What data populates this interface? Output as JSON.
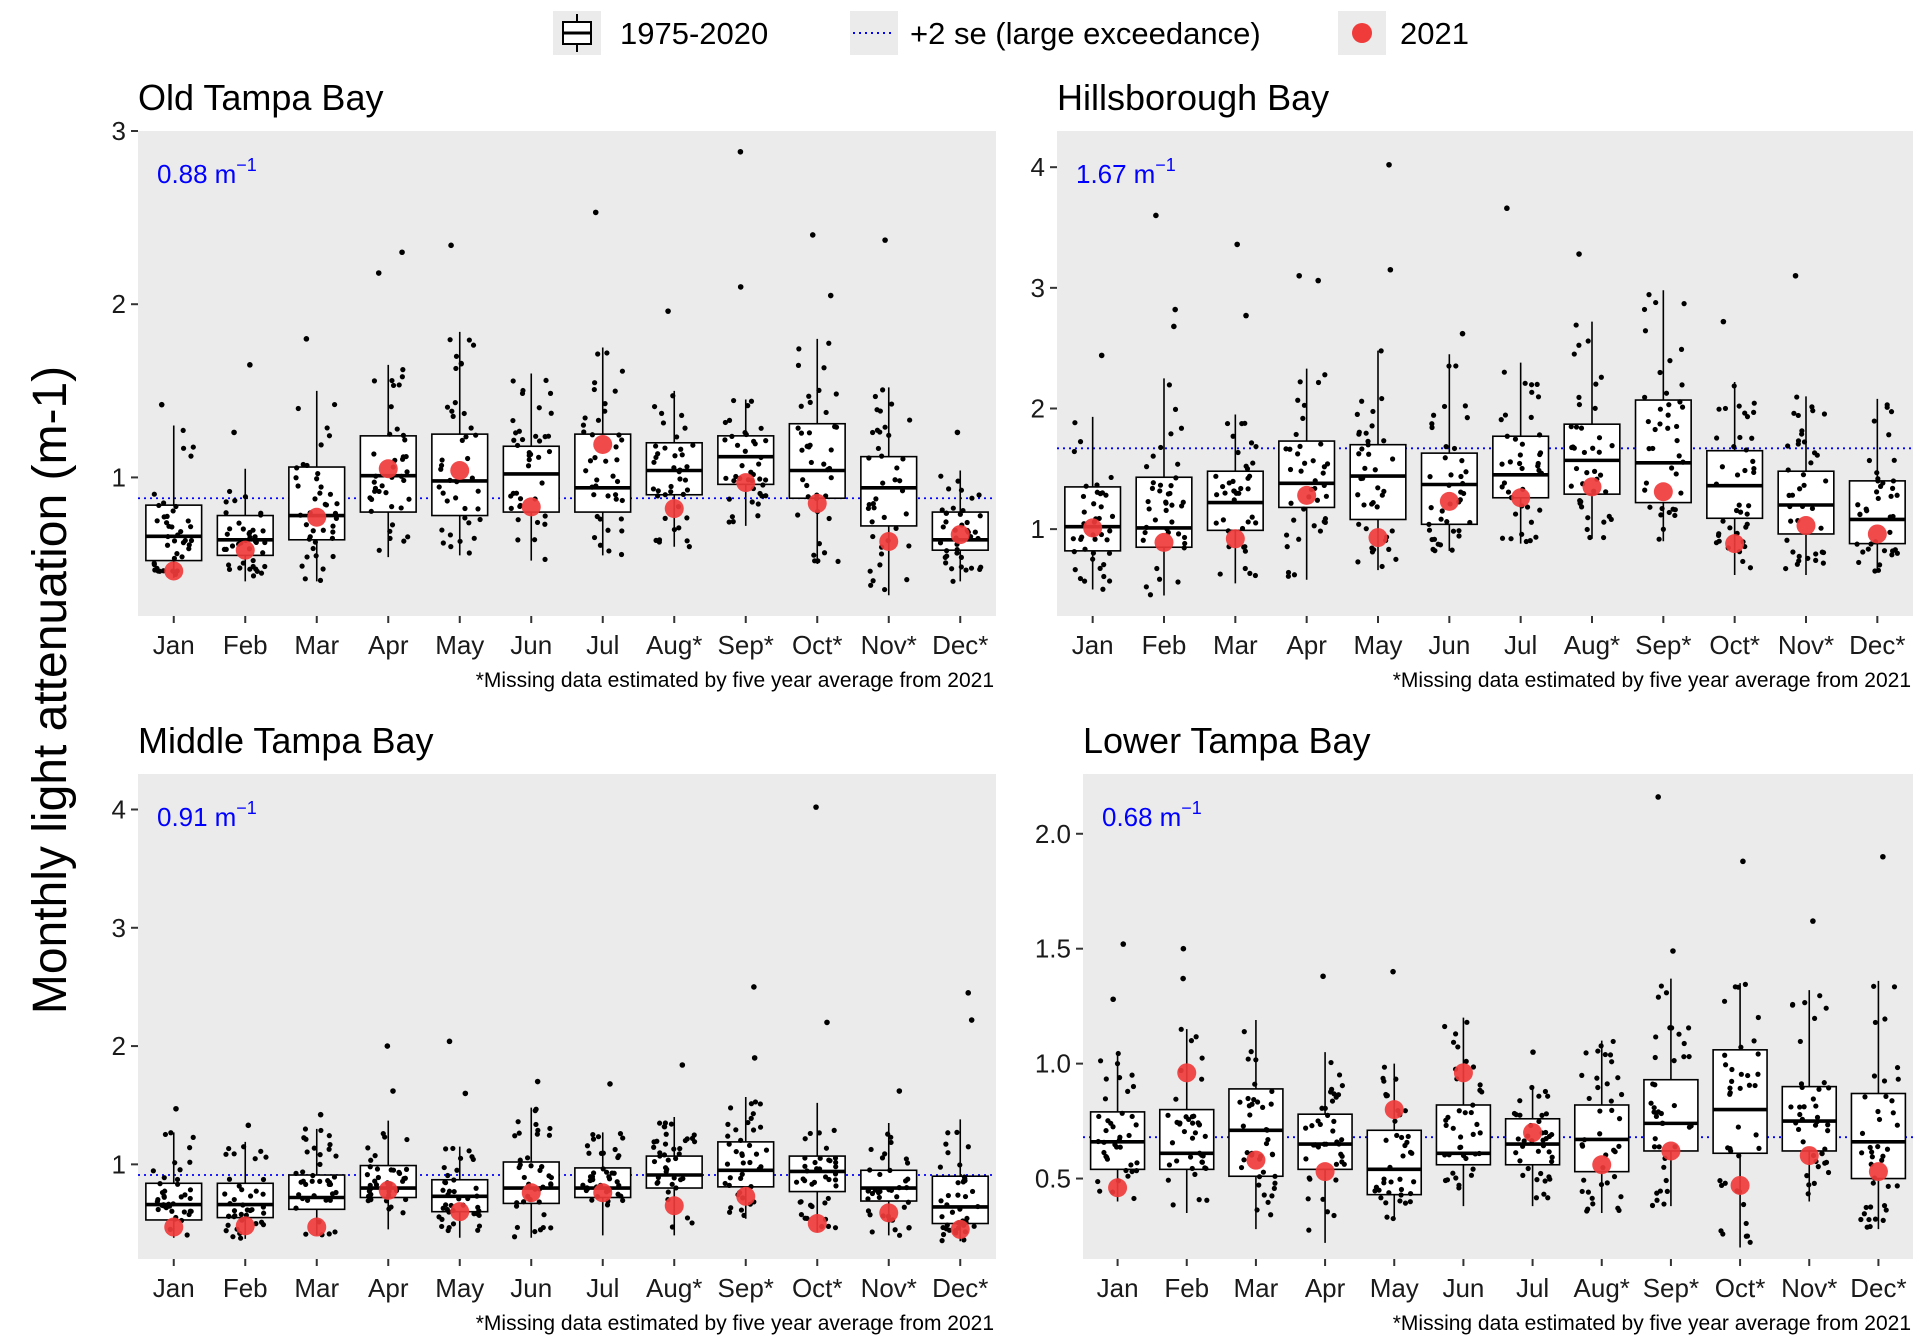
{
  "y_axis_label": "Monthly light attenuation (m-1)",
  "legend": {
    "position": "top",
    "items": [
      {
        "label": "1975-2020",
        "kind": "box"
      },
      {
        "label": "+2 se (large exceedance)",
        "kind": "dotted-line"
      },
      {
        "label": "2021",
        "kind": "point"
      }
    ]
  },
  "colors": {
    "panel_bg": "#ebebeb",
    "threshold": "#0000ff",
    "point_2021": "#f03b3b",
    "box_fill": "#ffffff",
    "box_line": "#000000"
  },
  "chart_data": [
    {
      "type": "box",
      "title": "Old Tampa Bay",
      "note": "*Missing data estimated by five year average from 2021",
      "threshold": 0.88,
      "threshold_value": "0.88",
      "threshold_unit": "m",
      "threshold_exp": "−1",
      "ylim": [
        0.2,
        3.0
      ],
      "yticks": [
        1,
        2,
        3
      ],
      "ytick_labels": [
        "1",
        "2",
        "3"
      ],
      "categories": [
        "Jan",
        "Feb",
        "Mar",
        "Apr",
        "May",
        "Jun",
        "Jul",
        "Aug*",
        "Sep*",
        "Oct*",
        "Nov*",
        "Dec*"
      ],
      "boxes": [
        {
          "low": 0.42,
          "q1": 0.52,
          "median": 0.66,
          "q3": 0.84,
          "high": 1.3,
          "outliers": [
            1.42
          ]
        },
        {
          "low": 0.4,
          "q1": 0.55,
          "median": 0.64,
          "q3": 0.78,
          "high": 1.05,
          "outliers": [
            1.26,
            1.65
          ]
        },
        {
          "low": 0.4,
          "q1": 0.64,
          "median": 0.78,
          "q3": 1.06,
          "high": 1.5,
          "outliers": [
            1.8
          ]
        },
        {
          "low": 0.54,
          "q1": 0.8,
          "median": 1.01,
          "q3": 1.24,
          "high": 1.65,
          "outliers": [
            2.18,
            2.3
          ]
        },
        {
          "low": 0.55,
          "q1": 0.78,
          "median": 0.98,
          "q3": 1.25,
          "high": 1.84,
          "outliers": [
            2.34
          ]
        },
        {
          "low": 0.52,
          "q1": 0.8,
          "median": 1.02,
          "q3": 1.18,
          "high": 1.6,
          "outliers": []
        },
        {
          "low": 0.55,
          "q1": 0.8,
          "median": 0.94,
          "q3": 1.25,
          "high": 1.75,
          "outliers": [
            2.53
          ]
        },
        {
          "low": 0.6,
          "q1": 0.9,
          "median": 1.04,
          "q3": 1.2,
          "high": 1.5,
          "outliers": [
            1.96
          ]
        },
        {
          "low": 0.72,
          "q1": 0.96,
          "median": 1.12,
          "q3": 1.24,
          "high": 1.45,
          "outliers": [
            2.88,
            2.1
          ]
        },
        {
          "low": 0.5,
          "q1": 0.88,
          "median": 1.04,
          "q3": 1.31,
          "high": 1.8,
          "outliers": [
            2.4,
            2.05
          ]
        },
        {
          "low": 0.32,
          "q1": 0.72,
          "median": 0.94,
          "q3": 1.12,
          "high": 1.52,
          "outliers": [
            2.37
          ]
        },
        {
          "low": 0.4,
          "q1": 0.58,
          "median": 0.64,
          "q3": 0.8,
          "high": 1.04,
          "outliers": [
            1.26
          ]
        }
      ],
      "values_2021": [
        0.46,
        0.58,
        0.77,
        1.05,
        1.04,
        0.83,
        1.19,
        0.82,
        0.97,
        0.85,
        0.63,
        0.67
      ]
    },
    {
      "type": "box",
      "title": "Hillsborough Bay",
      "note": "*Missing data estimated by five year average from 2021",
      "threshold": 1.67,
      "threshold_value": "1.67",
      "threshold_unit": "m",
      "threshold_exp": "−1",
      "ylim": [
        0.28,
        4.3
      ],
      "yticks": [
        1,
        2,
        3,
        4
      ],
      "ytick_labels": [
        "1",
        "2",
        "3",
        "4"
      ],
      "categories": [
        "Jan",
        "Feb",
        "Mar",
        "Apr",
        "May",
        "Jun",
        "Jul",
        "Aug*",
        "Sep*",
        "Oct*",
        "Nov*",
        "Dec*"
      ],
      "boxes": [
        {
          "low": 0.5,
          "q1": 0.82,
          "median": 1.02,
          "q3": 1.35,
          "high": 1.93,
          "outliers": [
            2.44
          ]
        },
        {
          "low": 0.45,
          "q1": 0.85,
          "median": 1.01,
          "q3": 1.43,
          "high": 2.25,
          "outliers": [
            2.68,
            2.82,
            3.6
          ]
        },
        {
          "low": 0.55,
          "q1": 0.99,
          "median": 1.22,
          "q3": 1.48,
          "high": 1.95,
          "outliers": [
            2.77,
            3.36
          ]
        },
        {
          "low": 0.58,
          "q1": 1.18,
          "median": 1.38,
          "q3": 1.73,
          "high": 2.33,
          "outliers": [
            3.06,
            3.1
          ]
        },
        {
          "low": 0.66,
          "q1": 1.08,
          "median": 1.44,
          "q3": 1.7,
          "high": 2.48,
          "outliers": [
            3.15,
            4.02
          ]
        },
        {
          "low": 0.82,
          "q1": 1.04,
          "median": 1.37,
          "q3": 1.63,
          "high": 2.45,
          "outliers": [
            2.62
          ]
        },
        {
          "low": 0.88,
          "q1": 1.26,
          "median": 1.45,
          "q3": 1.77,
          "high": 2.38,
          "outliers": [
            3.66
          ]
        },
        {
          "low": 0.92,
          "q1": 1.29,
          "median": 1.57,
          "q3": 1.87,
          "high": 2.72,
          "outliers": [
            3.28
          ]
        },
        {
          "low": 0.9,
          "q1": 1.22,
          "median": 1.55,
          "q3": 2.07,
          "high": 2.98,
          "outliers": []
        },
        {
          "low": 0.62,
          "q1": 1.09,
          "median": 1.36,
          "q3": 1.65,
          "high": 2.22,
          "outliers": [
            2.72
          ]
        },
        {
          "low": 0.62,
          "q1": 0.96,
          "median": 1.2,
          "q3": 1.48,
          "high": 2.1,
          "outliers": [
            3.1
          ]
        },
        {
          "low": 0.64,
          "q1": 0.88,
          "median": 1.08,
          "q3": 1.4,
          "high": 2.08,
          "outliers": []
        }
      ],
      "values_2021": [
        1.01,
        0.89,
        0.92,
        1.28,
        0.93,
        1.23,
        1.26,
        1.35,
        1.31,
        0.88,
        1.03,
        0.96
      ]
    },
    {
      "type": "box",
      "title": "Middle Tampa Bay",
      "note": "*Missing data estimated by five year average from 2021",
      "threshold": 0.91,
      "threshold_value": "0.91",
      "threshold_unit": "m",
      "threshold_exp": "−1",
      "ylim": [
        0.2,
        4.3
      ],
      "yticks": [
        1,
        2,
        3,
        4
      ],
      "ytick_labels": [
        "1",
        "2",
        "3",
        "4"
      ],
      "categories": [
        "Jan",
        "Feb",
        "Mar",
        "Apr",
        "May",
        "Jun",
        "Jul",
        "Aug*",
        "Sep*",
        "Oct*",
        "Nov*",
        "Dec*"
      ],
      "boxes": [
        {
          "low": 0.38,
          "q1": 0.53,
          "median": 0.66,
          "q3": 0.84,
          "high": 1.27,
          "outliers": [
            1.47
          ]
        },
        {
          "low": 0.37,
          "q1": 0.55,
          "median": 0.66,
          "q3": 0.84,
          "high": 1.19,
          "outliers": [
            1.33
          ]
        },
        {
          "low": 0.4,
          "q1": 0.62,
          "median": 0.72,
          "q3": 0.91,
          "high": 1.3,
          "outliers": [
            1.42
          ]
        },
        {
          "low": 0.45,
          "q1": 0.72,
          "median": 0.8,
          "q3": 0.99,
          "high": 1.37,
          "outliers": [
            1.62,
            2.0
          ]
        },
        {
          "low": 0.38,
          "q1": 0.6,
          "median": 0.73,
          "q3": 0.87,
          "high": 1.15,
          "outliers": [
            1.6,
            2.04
          ]
        },
        {
          "low": 0.38,
          "q1": 0.67,
          "median": 0.8,
          "q3": 1.02,
          "high": 1.48,
          "outliers": [
            1.7
          ]
        },
        {
          "low": 0.4,
          "q1": 0.72,
          "median": 0.8,
          "q3": 0.97,
          "high": 1.27,
          "outliers": [
            1.68
          ]
        },
        {
          "low": 0.4,
          "q1": 0.8,
          "median": 0.91,
          "q3": 1.07,
          "high": 1.4,
          "outliers": [
            1.84
          ]
        },
        {
          "low": 0.54,
          "q1": 0.81,
          "median": 0.95,
          "q3": 1.19,
          "high": 1.57,
          "outliers": [
            1.9,
            2.5
          ]
        },
        {
          "low": 0.43,
          "q1": 0.77,
          "median": 0.94,
          "q3": 1.07,
          "high": 1.52,
          "outliers": [
            2.2,
            4.02
          ]
        },
        {
          "low": 0.4,
          "q1": 0.69,
          "median": 0.8,
          "q3": 0.95,
          "high": 1.35,
          "outliers": [
            1.62
          ]
        },
        {
          "low": 0.35,
          "q1": 0.5,
          "median": 0.64,
          "q3": 0.9,
          "high": 1.38,
          "outliers": [
            2.22,
            2.45
          ]
        }
      ],
      "values_2021": [
        0.47,
        0.48,
        0.47,
        0.78,
        0.6,
        0.76,
        0.76,
        0.65,
        0.73,
        0.5,
        0.59,
        0.45
      ]
    },
    {
      "type": "box",
      "title": "Lower Tampa Bay",
      "note": "*Missing data estimated by five year average from 2021",
      "threshold": 0.68,
      "threshold_value": "0.68",
      "threshold_unit": "m",
      "threshold_exp": "−1",
      "ylim": [
        0.15,
        2.26
      ],
      "yticks": [
        0.5,
        1.0,
        1.5,
        2.0
      ],
      "ytick_labels": [
        "0.5",
        "1.0",
        "1.5",
        "2.0"
      ],
      "categories": [
        "Jan",
        "Feb",
        "Mar",
        "Apr",
        "May",
        "Jun",
        "Jul",
        "Aug*",
        "Sep*",
        "Oct*",
        "Nov*",
        "Dec*"
      ],
      "boxes": [
        {
          "low": 0.4,
          "q1": 0.54,
          "median": 0.66,
          "q3": 0.79,
          "high": 1.05,
          "outliers": [
            1.28,
            1.52
          ]
        },
        {
          "low": 0.35,
          "q1": 0.54,
          "median": 0.61,
          "q3": 0.8,
          "high": 1.15,
          "outliers": [
            1.37,
            1.5
          ]
        },
        {
          "low": 0.28,
          "q1": 0.51,
          "median": 0.71,
          "q3": 0.89,
          "high": 1.19,
          "outliers": []
        },
        {
          "low": 0.22,
          "q1": 0.54,
          "median": 0.65,
          "q3": 0.78,
          "high": 1.05,
          "outliers": [
            1.38
          ]
        },
        {
          "low": 0.32,
          "q1": 0.43,
          "median": 0.54,
          "q3": 0.71,
          "high": 1.0,
          "outliers": [
            1.4
          ]
        },
        {
          "low": 0.38,
          "q1": 0.56,
          "median": 0.61,
          "q3": 0.82,
          "high": 1.2,
          "outliers": []
        },
        {
          "low": 0.38,
          "q1": 0.56,
          "median": 0.65,
          "q3": 0.76,
          "high": 0.9,
          "outliers": [
            1.05
          ]
        },
        {
          "low": 0.35,
          "q1": 0.53,
          "median": 0.67,
          "q3": 0.82,
          "high": 1.1,
          "outliers": []
        },
        {
          "low": 0.38,
          "q1": 0.62,
          "median": 0.74,
          "q3": 0.93,
          "high": 1.37,
          "outliers": [
            1.49,
            2.16
          ]
        },
        {
          "low": 0.2,
          "q1": 0.61,
          "median": 0.8,
          "q3": 1.06,
          "high": 1.35,
          "outliers": [
            1.88
          ]
        },
        {
          "low": 0.4,
          "q1": 0.62,
          "median": 0.75,
          "q3": 0.9,
          "high": 1.32,
          "outliers": [
            1.62
          ]
        },
        {
          "low": 0.28,
          "q1": 0.5,
          "median": 0.66,
          "q3": 0.87,
          "high": 1.36,
          "outliers": [
            1.9
          ]
        }
      ],
      "values_2021": [
        0.46,
        0.96,
        0.58,
        0.53,
        0.8,
        0.96,
        0.7,
        0.56,
        0.62,
        0.47,
        0.6,
        0.53
      ]
    }
  ]
}
